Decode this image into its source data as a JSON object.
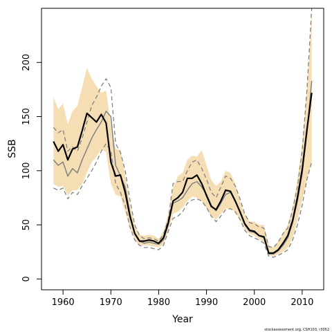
{
  "chart_data": {
    "type": "line",
    "xlabel": "Year",
    "ylabel": "SSB",
    "xlim": [
      1955.5,
      2014.5
    ],
    "ylim": [
      -10,
      250
    ],
    "x_ticks": [
      "1960",
      "1970",
      "1980",
      "1990",
      "2000",
      "2010"
    ],
    "y_ticks": [
      "0",
      "50",
      "100",
      "150",
      "200"
    ],
    "x": [
      1958,
      1959,
      1960,
      1961,
      1962,
      1963,
      1964,
      1965,
      1966,
      1967,
      1968,
      1969,
      1970,
      1971,
      1972,
      1973,
      1974,
      1975,
      1976,
      1977,
      1978,
      1979,
      1980,
      1981,
      1982,
      1983,
      1984,
      1985,
      1986,
      1987,
      1988,
      1989,
      1990,
      1991,
      1992,
      1993,
      1994,
      1995,
      1996,
      1997,
      1998,
      1999,
      2000,
      2001,
      2002,
      2003,
      2004,
      2005,
      2006,
      2007,
      2008,
      2009,
      2010,
      2011,
      2012
    ],
    "band": {
      "lower": [
        88,
        85,
        86,
        77,
        82,
        82,
        88,
        98,
        108,
        113,
        120,
        117,
        88,
        78,
        76,
        62,
        47,
        36,
        31,
        31,
        31,
        30,
        29,
        32,
        45,
        60,
        62,
        66,
        72,
        76,
        75,
        72,
        65,
        58,
        55,
        60,
        65,
        65,
        62,
        55,
        46,
        42,
        40,
        37,
        34,
        22,
        21,
        23,
        25,
        29,
        38,
        55,
        73,
        92,
        108
      ],
      "upper": [
        168,
        157,
        162,
        143,
        155,
        160,
        177,
        195,
        185,
        178,
        172,
        174,
        142,
        120,
        119,
        96,
        69,
        50,
        41,
        40,
        41,
        40,
        37,
        44,
        60,
        84,
        95,
        98,
        110,
        114,
        113,
        119,
        105,
        91,
        86,
        90,
        100,
        98,
        88,
        72,
        60,
        53,
        53,
        50,
        50,
        31,
        29,
        35,
        42,
        50,
        66,
        92,
        125,
        175,
        245
      ]
    },
    "series": [
      {
        "style": "black-solid-thick",
        "values": [
          127,
          118,
          124,
          110,
          120,
          122,
          137,
          153,
          149,
          145,
          152,
          144,
          108,
          95,
          96,
          80,
          58,
          42,
          35,
          35,
          36,
          35,
          33,
          38,
          52,
          72,
          75,
          80,
          93,
          93,
          96,
          88,
          77,
          67,
          64,
          72,
          82,
          81,
          72,
          62,
          51,
          45,
          44,
          40,
          39,
          24,
          24,
          27,
          33,
          40,
          54,
          75,
          101,
          138,
          172
        ]
      },
      {
        "style": "grey-solid",
        "values": [
          110,
          105,
          108,
          95,
          102,
          98,
          110,
          120,
          130,
          138,
          145,
          155,
          150,
          105,
          95,
          85,
          60,
          42,
          35,
          33,
          34,
          33,
          32,
          36,
          50,
          70,
          72,
          75,
          82,
          88,
          90,
          85,
          78,
          68,
          63,
          70,
          78,
          80,
          72,
          62,
          50,
          44,
          43,
          40,
          38,
          23,
          23,
          26,
          31,
          38,
          52,
          72,
          97,
          135,
          183
        ]
      },
      {
        "style": "grey-dashed-upper",
        "values": [
          140,
          135,
          138,
          118,
          122,
          118,
          130,
          145,
          160,
          168,
          178,
          185,
          177,
          125,
          117,
          100,
          73,
          50,
          40,
          37,
          38,
          37,
          35,
          41,
          55,
          88,
          90,
          90,
          100,
          108,
          110,
          102,
          92,
          80,
          75,
          85,
          95,
          93,
          86,
          74,
          60,
          52,
          51,
          48,
          47,
          30,
          29,
          34,
          42,
          47,
          64,
          85,
          118,
          175,
          250
        ]
      },
      {
        "style": "grey-dashed-lower",
        "values": [
          84,
          82,
          84,
          74,
          80,
          78,
          86,
          93,
          100,
          108,
          118,
          125,
          118,
          88,
          80,
          68,
          48,
          36,
          31,
          29,
          29,
          28,
          27,
          31,
          44,
          56,
          58,
          62,
          70,
          73,
          74,
          72,
          66,
          58,
          53,
          58,
          64,
          65,
          62,
          55,
          45,
          40,
          38,
          36,
          33,
          21,
          20,
          22,
          24,
          27,
          36,
          50,
          68,
          92,
          108
        ]
      }
    ],
    "colors": {
      "band": "#f5deb3",
      "main": "#000000",
      "alt": "#808080"
    },
    "credit": "stockassessment.org, CSH103, r3052"
  }
}
